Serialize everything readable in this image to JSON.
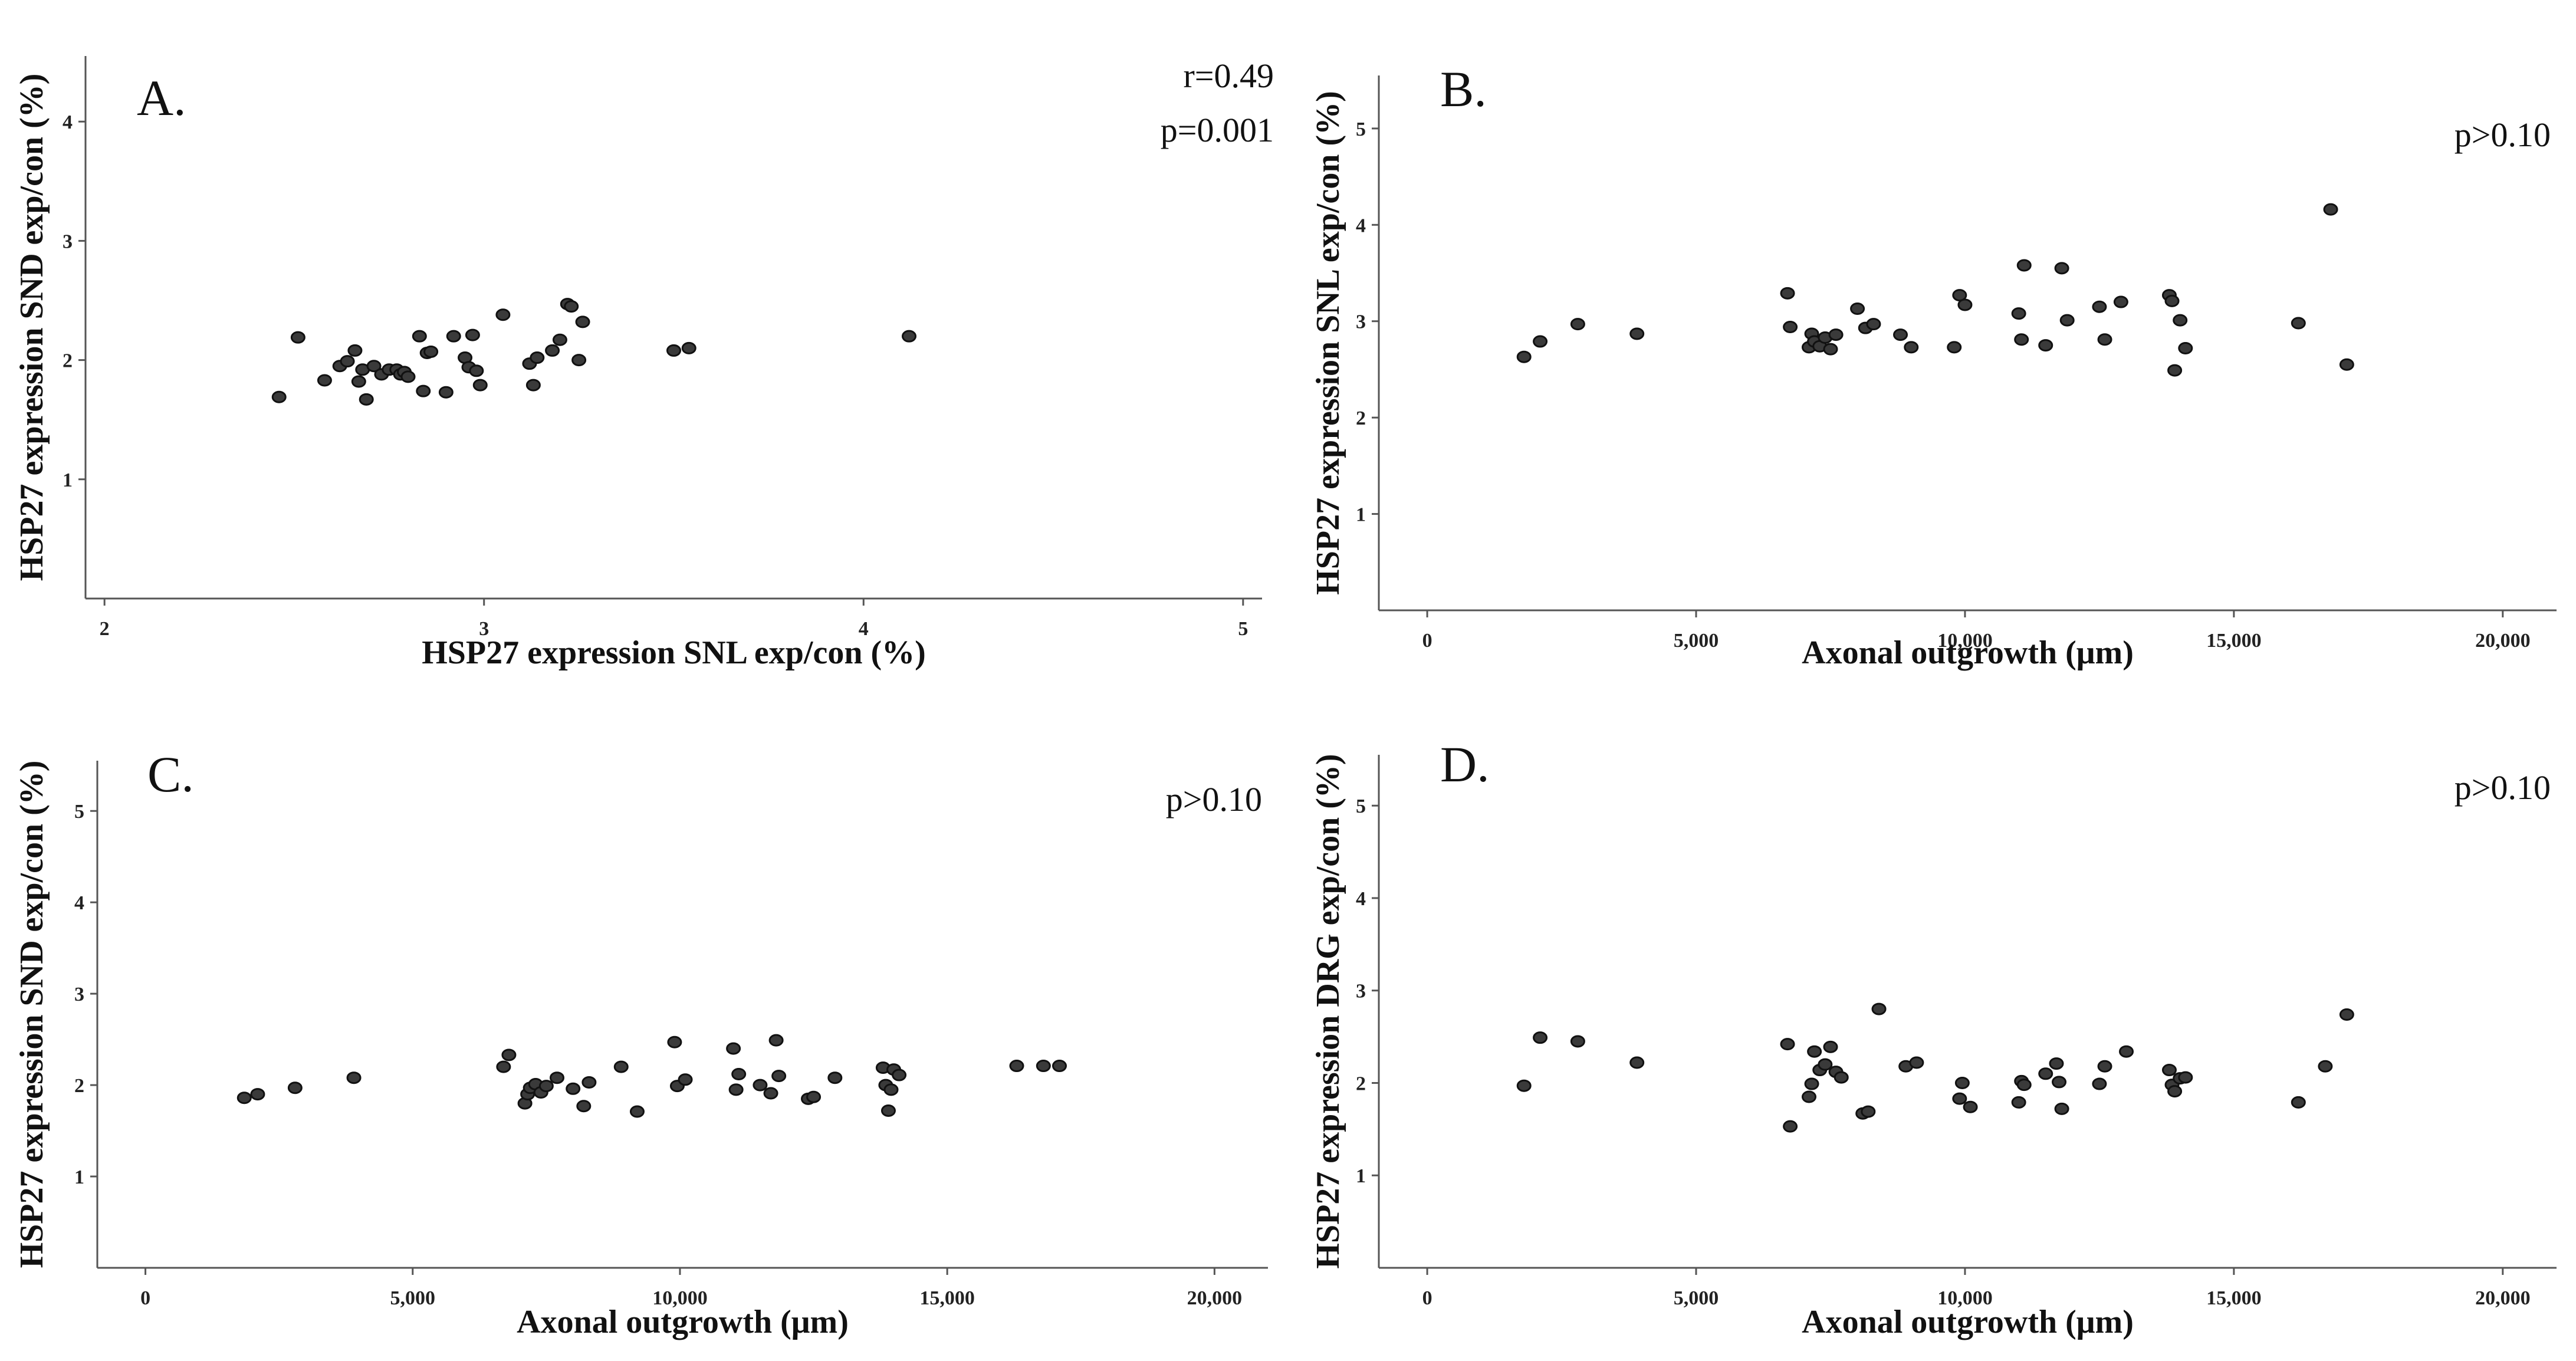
{
  "chart_data": [
    {
      "type": "scatter",
      "panel_label": "A.",
      "stats": [
        "r=0.49",
        "p=0.001"
      ],
      "xlabel": "HSP27 expression SNL exp/con (%)",
      "ylabel": "HSP27 expression SND exp/con (%)",
      "xlim": [
        1.95,
        5.05
      ],
      "ylim": [
        0,
        4.55
      ],
      "xticks": [
        2,
        3,
        4,
        5
      ],
      "xtick_labels": [
        "2",
        "3",
        "4",
        "5"
      ],
      "yticks": [
        1,
        2,
        3,
        4
      ],
      "ytick_labels": [
        "1",
        "2",
        "3",
        "4"
      ],
      "points": [
        [
          2.46,
          1.69
        ],
        [
          2.51,
          2.19
        ],
        [
          2.58,
          1.83
        ],
        [
          2.62,
          1.95
        ],
        [
          2.64,
          1.99
        ],
        [
          2.66,
          2.08
        ],
        [
          2.67,
          1.82
        ],
        [
          2.68,
          1.92
        ],
        [
          2.69,
          1.67
        ],
        [
          2.71,
          1.95
        ],
        [
          2.73,
          1.88
        ],
        [
          2.75,
          1.92
        ],
        [
          2.77,
          1.92
        ],
        [
          2.78,
          1.88
        ],
        [
          2.79,
          1.9
        ],
        [
          2.8,
          1.86
        ],
        [
          2.83,
          2.2
        ],
        [
          2.84,
          1.74
        ],
        [
          2.85,
          2.06
        ],
        [
          2.86,
          2.07
        ],
        [
          2.9,
          1.73
        ],
        [
          2.92,
          2.2
        ],
        [
          2.95,
          2.02
        ],
        [
          2.96,
          1.94
        ],
        [
          2.97,
          2.21
        ],
        [
          2.98,
          1.91
        ],
        [
          2.99,
          1.79
        ],
        [
          3.05,
          2.38
        ],
        [
          3.12,
          1.97
        ],
        [
          3.13,
          1.79
        ],
        [
          3.14,
          2.02
        ],
        [
          3.18,
          2.08
        ],
        [
          3.2,
          2.17
        ],
        [
          3.22,
          2.47
        ],
        [
          3.23,
          2.45
        ],
        [
          3.25,
          2.0
        ],
        [
          3.26,
          2.32
        ],
        [
          3.5,
          2.08
        ],
        [
          3.54,
          2.1
        ],
        [
          4.12,
          2.2
        ]
      ]
    },
    {
      "type": "scatter",
      "panel_label": "B.",
      "stats": [
        "p>0.10"
      ],
      "xlabel": "Axonal outgrowth (μm)",
      "ylabel": "HSP27 expression SNL exp/con (%)",
      "xlim": [
        -900,
        21000
      ],
      "ylim": [
        0,
        5.55
      ],
      "xticks": [
        0,
        5000,
        10000,
        15000,
        20000
      ],
      "xtick_labels": [
        "0",
        "5,000",
        "10,000",
        "15,000",
        "20,000"
      ],
      "yticks": [
        1,
        2,
        3,
        4,
        5
      ],
      "ytick_labels": [
        "1",
        "2",
        "3",
        "4",
        "5"
      ],
      "points": [
        [
          1800,
          2.63
        ],
        [
          2100,
          2.79
        ],
        [
          2800,
          2.97
        ],
        [
          3900,
          2.87
        ],
        [
          6700,
          3.29
        ],
        [
          6750,
          2.94
        ],
        [
          7100,
          2.73
        ],
        [
          7150,
          2.87
        ],
        [
          7200,
          2.79
        ],
        [
          7300,
          2.74
        ],
        [
          7400,
          2.83
        ],
        [
          7500,
          2.71
        ],
        [
          7600,
          2.86
        ],
        [
          8000,
          3.13
        ],
        [
          8150,
          2.93
        ],
        [
          8300,
          2.97
        ],
        [
          8800,
          2.86
        ],
        [
          9000,
          2.73
        ],
        [
          9800,
          2.73
        ],
        [
          9900,
          3.27
        ],
        [
          10000,
          3.17
        ],
        [
          11000,
          3.08
        ],
        [
          11050,
          2.81
        ],
        [
          11100,
          3.58
        ],
        [
          11500,
          2.75
        ],
        [
          11800,
          3.55
        ],
        [
          11900,
          3.01
        ],
        [
          12500,
          3.15
        ],
        [
          12600,
          2.81
        ],
        [
          12900,
          3.2
        ],
        [
          13800,
          3.27
        ],
        [
          13850,
          3.21
        ],
        [
          13900,
          2.49
        ],
        [
          14000,
          3.01
        ],
        [
          14100,
          2.72
        ],
        [
          16200,
          2.98
        ],
        [
          16800,
          4.16
        ],
        [
          17100,
          2.55
        ]
      ]
    },
    {
      "type": "scatter",
      "panel_label": "C.",
      "stats": [
        "p>0.10"
      ],
      "xlabel": "Axonal outgrowth (μm)",
      "ylabel": "HSP27 expression SND exp/con (%)",
      "xlim": [
        -900,
        21000
      ],
      "ylim": [
        0,
        5.55
      ],
      "xticks": [
        0,
        5000,
        10000,
        15000,
        20000
      ],
      "xtick_labels": [
        "0",
        "5,000",
        "10,000",
        "15,000",
        "20,000"
      ],
      "yticks": [
        1,
        2,
        3,
        4,
        5
      ],
      "ytick_labels": [
        "1",
        "2",
        "3",
        "4",
        "5"
      ],
      "points": [
        [
          1850,
          1.86
        ],
        [
          2100,
          1.9
        ],
        [
          2800,
          1.97
        ],
        [
          3900,
          2.08
        ],
        [
          6700,
          2.2
        ],
        [
          6800,
          2.33
        ],
        [
          7100,
          1.8
        ],
        [
          7150,
          1.9
        ],
        [
          7200,
          1.97
        ],
        [
          7300,
          2.01
        ],
        [
          7400,
          1.92
        ],
        [
          7500,
          1.99
        ],
        [
          7700,
          2.08
        ],
        [
          8000,
          1.96
        ],
        [
          8200,
          1.77
        ],
        [
          8300,
          2.03
        ],
        [
          8900,
          2.2
        ],
        [
          9200,
          1.71
        ],
        [
          9900,
          2.47
        ],
        [
          9950,
          1.99
        ],
        [
          10100,
          2.06
        ],
        [
          11000,
          2.4
        ],
        [
          11050,
          1.95
        ],
        [
          11100,
          2.12
        ],
        [
          11500,
          2.0
        ],
        [
          11700,
          1.91
        ],
        [
          11800,
          2.49
        ],
        [
          11850,
          2.1
        ],
        [
          12400,
          1.85
        ],
        [
          12500,
          1.87
        ],
        [
          12900,
          2.08
        ],
        [
          13800,
          2.19
        ],
        [
          13850,
          2.0
        ],
        [
          13900,
          1.72
        ],
        [
          13950,
          1.95
        ],
        [
          14000,
          2.17
        ],
        [
          14100,
          2.11
        ],
        [
          16300,
          2.21
        ],
        [
          16800,
          2.21
        ],
        [
          17100,
          2.21
        ]
      ]
    },
    {
      "type": "scatter",
      "panel_label": "D.",
      "stats": [
        "p>0.10"
      ],
      "xlabel": "Axonal outgrowth (μm)",
      "ylabel": "HSP27 expression DRG exp/con (%)",
      "xlim": [
        -900,
        21000
      ],
      "ylim": [
        0,
        5.55
      ],
      "xticks": [
        0,
        5000,
        10000,
        15000,
        20000
      ],
      "xtick_labels": [
        "0",
        "5,000",
        "10,000",
        "15,000",
        "20,000"
      ],
      "yticks": [
        1,
        2,
        3,
        4,
        5
      ],
      "ytick_labels": [
        "1",
        "2",
        "3",
        "4",
        "5"
      ],
      "points": [
        [
          1800,
          1.97
        ],
        [
          2100,
          2.49
        ],
        [
          2800,
          2.45
        ],
        [
          3900,
          2.22
        ],
        [
          6700,
          2.42
        ],
        [
          6750,
          1.53
        ],
        [
          7100,
          1.85
        ],
        [
          7150,
          1.99
        ],
        [
          7200,
          2.34
        ],
        [
          7300,
          2.14
        ],
        [
          7400,
          2.2
        ],
        [
          7500,
          2.39
        ],
        [
          7600,
          2.12
        ],
        [
          7700,
          2.06
        ],
        [
          8100,
          1.67
        ],
        [
          8200,
          1.69
        ],
        [
          8400,
          2.8
        ],
        [
          8900,
          2.18
        ],
        [
          9100,
          2.22
        ],
        [
          9900,
          1.83
        ],
        [
          9950,
          2.0
        ],
        [
          10100,
          1.74
        ],
        [
          11000,
          1.79
        ],
        [
          11050,
          2.02
        ],
        [
          11100,
          1.98
        ],
        [
          11500,
          2.1
        ],
        [
          11700,
          2.21
        ],
        [
          11750,
          2.01
        ],
        [
          11800,
          1.72
        ],
        [
          12500,
          1.99
        ],
        [
          12600,
          2.18
        ],
        [
          13000,
          2.34
        ],
        [
          13800,
          2.14
        ],
        [
          13850,
          1.98
        ],
        [
          13900,
          1.91
        ],
        [
          14000,
          2.05
        ],
        [
          14100,
          2.06
        ],
        [
          16200,
          1.79
        ],
        [
          16700,
          2.18
        ],
        [
          17100,
          2.74
        ]
      ]
    }
  ]
}
